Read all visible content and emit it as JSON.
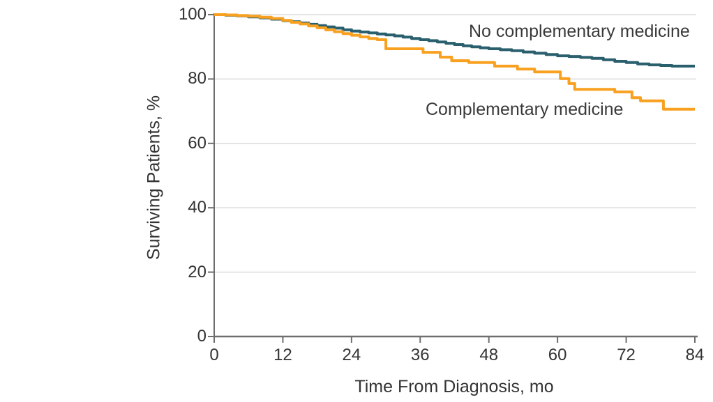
{
  "colors": {
    "background": "#ffffff",
    "axis": "#6e6e6e",
    "grid": "#dcdcdc",
    "text": "#333333",
    "no_cm_line": "#2a5f6e",
    "cm_line": "#f8a120"
  },
  "chart_data": {
    "type": "line",
    "subtype": "kaplan-meier-step-survival",
    "title": "",
    "xlabel": "Time From Diagnosis, mo",
    "ylabel": "Surviving Patients, %",
    "xlim": [
      0,
      84
    ],
    "ylim": [
      0,
      100
    ],
    "xticks": [
      0,
      12,
      24,
      36,
      48,
      60,
      72,
      84
    ],
    "yticks": [
      0,
      20,
      40,
      60,
      80,
      100
    ],
    "grid": "horizontal-light",
    "legend_position": "inline-annotations",
    "series": [
      {
        "name": "No complementary medicine",
        "color": "#2a5f6e",
        "points": [
          [
            0,
            100
          ],
          [
            2,
            99.8
          ],
          [
            4,
            99.6
          ],
          [
            6,
            99.3
          ],
          [
            8,
            99.0
          ],
          [
            10,
            98.6
          ],
          [
            12,
            98.1
          ],
          [
            13.5,
            97.8
          ],
          [
            15,
            97.4
          ],
          [
            16.5,
            97.0
          ],
          [
            18,
            96.6
          ],
          [
            19.5,
            96.2
          ],
          [
            21,
            95.8
          ],
          [
            22.5,
            95.3
          ],
          [
            24,
            94.9
          ],
          [
            25.5,
            94.6
          ],
          [
            27,
            94.3
          ],
          [
            28.5,
            94.0
          ],
          [
            30,
            93.7
          ],
          [
            31.5,
            93.4
          ],
          [
            33,
            93.0
          ],
          [
            34.5,
            92.6
          ],
          [
            36,
            92.2
          ],
          [
            37.5,
            91.9
          ],
          [
            39,
            91.5
          ],
          [
            40.5,
            91.1
          ],
          [
            42,
            90.7
          ],
          [
            43.5,
            90.3
          ],
          [
            45,
            90.0
          ],
          [
            46.5,
            89.7
          ],
          [
            48,
            89.4
          ],
          [
            50,
            89.1
          ],
          [
            52,
            88.8
          ],
          [
            54,
            88.4
          ],
          [
            56,
            88.0
          ],
          [
            58,
            87.6
          ],
          [
            60,
            87.2
          ],
          [
            62,
            87.0
          ],
          [
            64,
            86.7
          ],
          [
            66,
            86.4
          ],
          [
            68,
            86.0
          ],
          [
            70,
            85.5
          ],
          [
            72,
            85.1
          ],
          [
            74,
            84.7
          ],
          [
            76,
            84.4
          ],
          [
            78,
            84.2
          ],
          [
            80,
            84.0
          ],
          [
            84,
            84.0
          ]
        ]
      },
      {
        "name": "Complementary medicine",
        "color": "#f8a120",
        "points": [
          [
            0,
            100
          ],
          [
            2,
            99.9
          ],
          [
            4,
            99.7
          ],
          [
            6,
            99.5
          ],
          [
            8,
            99.2
          ],
          [
            10,
            98.8
          ],
          [
            12,
            98.2
          ],
          [
            13.5,
            97.6
          ],
          [
            15,
            97.1
          ],
          [
            16.5,
            96.5
          ],
          [
            18,
            95.9
          ],
          [
            19.5,
            95.3
          ],
          [
            21,
            94.7
          ],
          [
            22.5,
            94.1
          ],
          [
            24,
            93.6
          ],
          [
            25.5,
            93.1
          ],
          [
            27,
            92.6
          ],
          [
            28.5,
            92.2
          ],
          [
            30,
            89.4
          ],
          [
            36.5,
            88.3
          ],
          [
            39.5,
            86.8
          ],
          [
            41.5,
            85.7
          ],
          [
            44.5,
            85.1
          ],
          [
            49,
            84.0
          ],
          [
            53,
            83.1
          ],
          [
            56,
            82.2
          ],
          [
            60.5,
            80.1
          ],
          [
            62,
            78.6
          ],
          [
            63,
            76.8
          ],
          [
            70,
            76.0
          ],
          [
            73,
            74.2
          ],
          [
            74.5,
            73.2
          ],
          [
            78.5,
            70.6
          ],
          [
            84,
            70.6
          ]
        ]
      }
    ]
  }
}
